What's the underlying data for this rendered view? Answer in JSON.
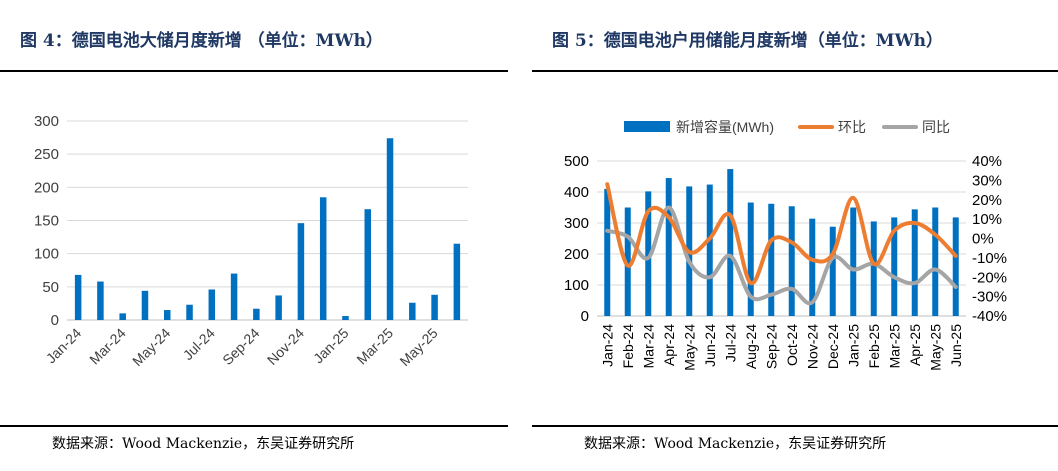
{
  "left": {
    "title": "图 4：德国电池大储月度新增 （单位：MWh）",
    "source": "数据来源：Wood Mackenzie，东吴证券研究所",
    "chart_data": {
      "type": "bar",
      "categories": [
        "Jan-24",
        "Feb-24",
        "Mar-24",
        "Apr-24",
        "May-24",
        "Jun-24",
        "Jul-24",
        "Aug-24",
        "Sep-24",
        "Oct-24",
        "Nov-24",
        "Dec-24",
        "Jan-25",
        "Feb-25",
        "Mar-25",
        "Apr-25",
        "May-25",
        "Jun-25"
      ],
      "tick_labels": [
        "Jan-24",
        "Mar-24",
        "May-24",
        "Jul-24",
        "Sep-24",
        "Nov-24",
        "Jan-25",
        "Mar-25",
        "May-25"
      ],
      "values": [
        68,
        58,
        10,
        44,
        15,
        23,
        46,
        70,
        17,
        37,
        146,
        185,
        6,
        167,
        274,
        26,
        38,
        115
      ],
      "ylim": [
        0,
        300
      ],
      "yticks": [
        "0",
        "50",
        "100",
        "150",
        "200",
        "250",
        "300"
      ],
      "grid": true,
      "color": "#0070c0"
    }
  },
  "right": {
    "title": "图 5：德国电池户用储能月度新增（单位：MWh）",
    "source": "数据来源：Wood Mackenzie，东吴证券研究所",
    "chart_data": {
      "type": "bar",
      "categories": [
        "Jan-24",
        "Feb-24",
        "Mar-24",
        "Apr-24",
        "May-24",
        "Jun-24",
        "Jul-24",
        "Aug-24",
        "Sep-24",
        "Oct-24",
        "Nov-24",
        "Dec-24",
        "Jan-25",
        "Feb-25",
        "Mar-25",
        "Apr-25",
        "May-25",
        "Jun-25"
      ],
      "series": [
        {
          "name": "新增容量(MWh)",
          "type": "bar",
          "axis": "left",
          "color": "#0070c0",
          "values": [
            410,
            350,
            402,
            445,
            418,
            424,
            474,
            366,
            362,
            354,
            314,
            288,
            350,
            305,
            318,
            344,
            350,
            318
          ]
        },
        {
          "name": "环比",
          "type": "line",
          "axis": "right",
          "color": "#ed7d31",
          "values": [
            28,
            -14,
            14,
            11,
            -7,
            0,
            12,
            -23,
            -1,
            -2,
            -11,
            -8,
            21,
            -13,
            4,
            8,
            2,
            -9
          ]
        },
        {
          "name": "同比",
          "type": "line",
          "axis": "right",
          "color": "#a5a5a5",
          "values": [
            4,
            1,
            -10,
            16,
            -12,
            -20,
            -9,
            -30,
            -29,
            -26,
            -33,
            -10,
            -16,
            -13,
            -20,
            -23,
            -16,
            -25
          ]
        }
      ],
      "ylim_left": [
        0,
        500
      ],
      "yticks_left": [
        "0",
        "100",
        "200",
        "300",
        "400",
        "500"
      ],
      "ylim_right": [
        -40,
        40
      ],
      "yticks_right": [
        "-40%",
        "-30%",
        "-20%",
        "-10%",
        "0%",
        "10%",
        "20%",
        "30%",
        "40%"
      ],
      "legend_position": "top",
      "grid": true
    }
  }
}
